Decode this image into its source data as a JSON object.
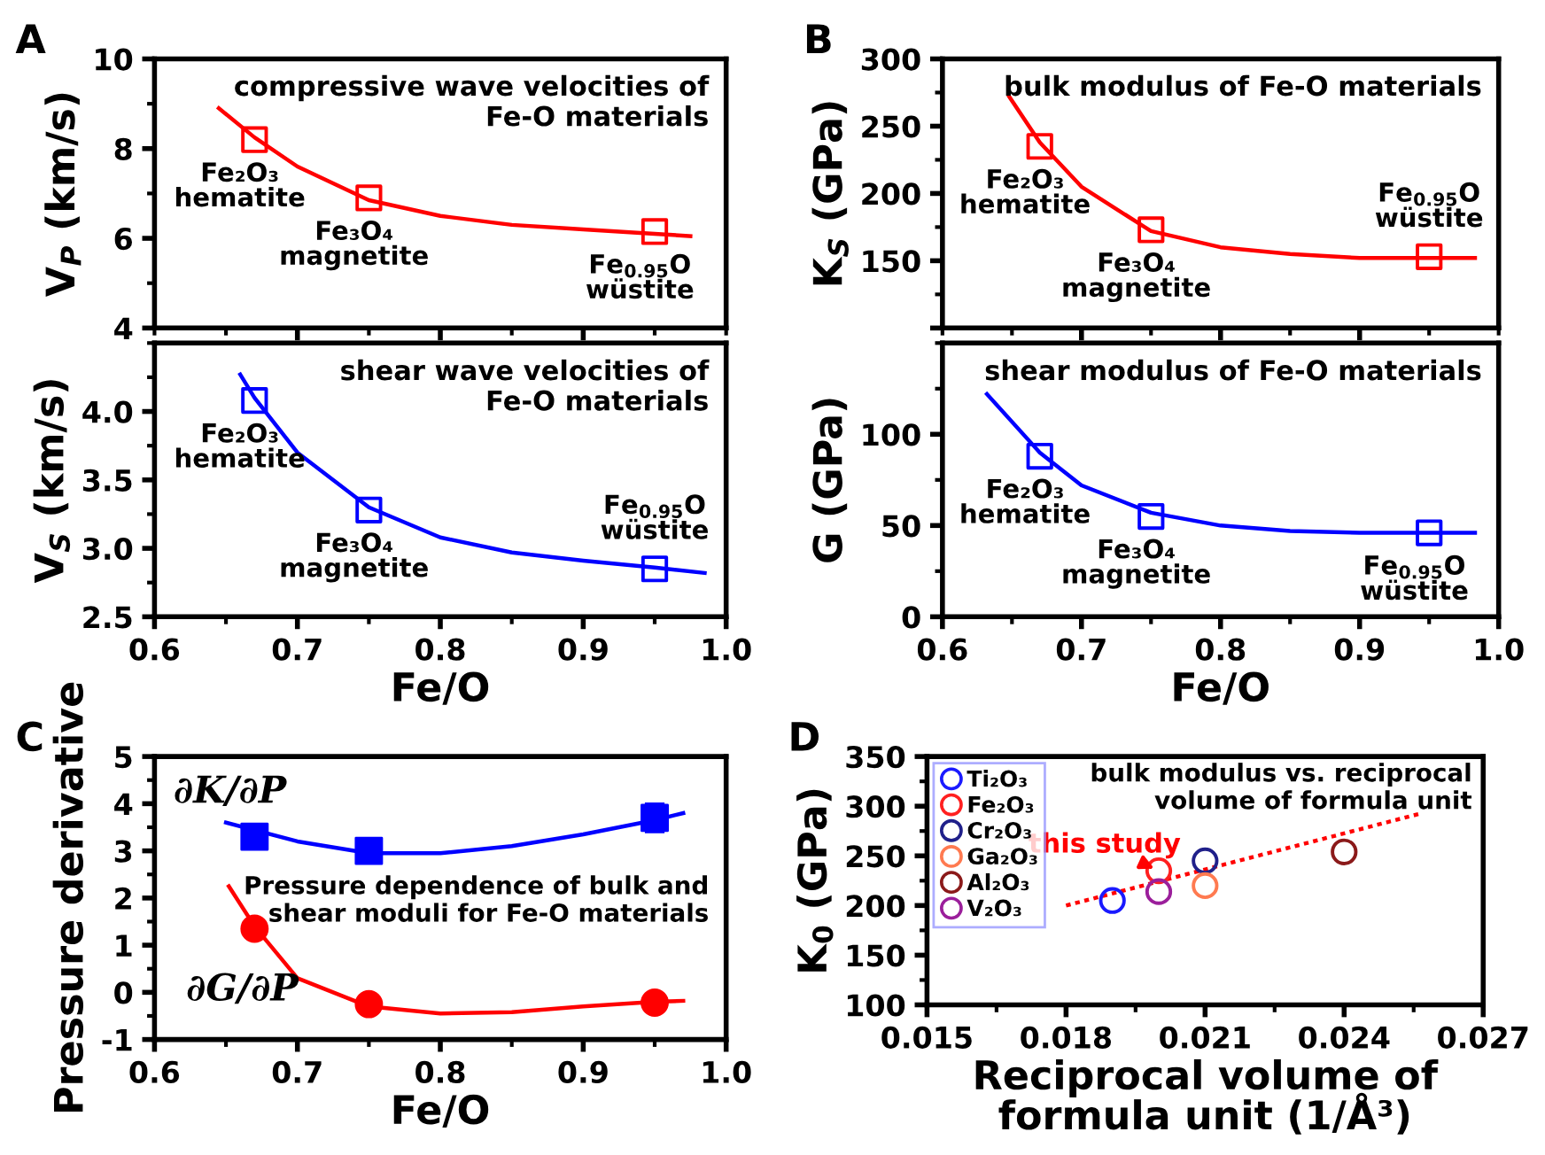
{
  "chart_data": [
    {
      "type": "scatter",
      "title": "A",
      "ylabel": "V$_{P}$ (km/s)",
      "xlim": [
        0.6,
        1.0
      ],
      "xticks": [
        {
          "value": 0.7,
          "label": null
        },
        {
          "value": 0.8,
          "label": null
        },
        {
          "value": 0.9,
          "label": null
        }
      ],
      "ylim": [
        4,
        10
      ],
      "yticks": [
        4,
        6,
        8,
        10
      ],
      "tick_labels": "y",
      "grid": false,
      "series": [
        {
          "type": "scatter",
          "marker": "square",
          "color": "#ff0000",
          "x": [
            0.67,
            0.75,
            0.95
          ],
          "values": [
            8.2,
            6.9,
            6.15
          ]
        },
        {
          "type": "line",
          "color": "#ff0000",
          "x": [
            0.645,
            0.67,
            0.7,
            0.75,
            0.8,
            0.85,
            0.9,
            0.95,
            0.975
          ],
          "values": [
            8.9,
            8.25,
            7.6,
            6.85,
            6.5,
            6.3,
            6.2,
            6.1,
            6.05
          ]
        }
      ],
      "annotations": [
        "compressive wave velocities of\nFe-O materials",
        {
          "text": "Fe₂O₃\nhematite",
          "x": 0.67,
          "y": 8.2
        },
        {
          "text": "Fe₃O₄\nmagnetite",
          "x": 0.75,
          "y": 6.9
        },
        {
          "text": "Fe$_{0.95}$O\nwüstite",
          "x": 0.95,
          "y": 6.15
        }
      ]
    },
    {
      "type": "scatter",
      "xlabel": "Fe/O",
      "ylabel": "V$_{S}$ (km/s)",
      "xlim": [
        0.6,
        1.0
      ],
      "xticks": [
        0.6,
        0.7,
        0.8,
        0.9,
        {
          "value": 1.0,
          "label": "1.0"
        }
      ],
      "ylim": [
        2.5,
        4.5
      ],
      "yticks": [
        2.5,
        {
          "value": 3.0,
          "label": "3.0"
        },
        3.5,
        {
          "value": 4.0,
          "label": "4.0"
        }
      ],
      "grid": false,
      "series": [
        {
          "type": "scatter",
          "marker": "square",
          "color": "#0000ff",
          "x": [
            0.67,
            0.75,
            0.95
          ],
          "values": [
            4.08,
            3.28,
            2.85
          ]
        },
        {
          "type": "line",
          "color": "#0000ff",
          "x": [
            0.66,
            0.67,
            0.7,
            0.75,
            0.8,
            0.85,
            0.9,
            0.95,
            0.985
          ],
          "values": [
            4.27,
            4.1,
            3.7,
            3.3,
            3.08,
            2.97,
            2.91,
            2.86,
            2.82
          ]
        }
      ],
      "annotations": [
        "shear wave velocities of\nFe-O materials",
        {
          "text": "Fe₂O₃\nhematite",
          "x": 0.67,
          "y": 4.08
        },
        {
          "text": "Fe₃O₄\nmagnetite",
          "x": 0.75,
          "y": 3.28
        },
        {
          "text": "Fe$_{0.95}$O\nwüstite",
          "x": 0.95,
          "y": 2.85
        }
      ]
    },
    {
      "type": "scatter",
      "title": "B",
      "ylabel": "K$_{S}$ (GPa)",
      "xlim": [
        0.6,
        1.0
      ],
      "xticks": [
        {
          "value": 0.7,
          "label": null
        },
        {
          "value": 0.8,
          "label": null
        },
        {
          "value": 0.9,
          "label": null
        }
      ],
      "ylim": [
        100,
        300
      ],
      "yticks": [
        {
          "value": 100,
          "label": null
        },
        150,
        200,
        250,
        300
      ],
      "tick_labels": "y",
      "grid": false,
      "series": [
        {
          "type": "scatter",
          "marker": "square",
          "color": "#ff0000",
          "x": [
            0.67,
            0.75,
            0.95
          ],
          "values": [
            235,
            173,
            153
          ]
        },
        {
          "type": "line",
          "color": "#ff0000",
          "x": [
            0.648,
            0.67,
            0.7,
            0.75,
            0.8,
            0.85,
            0.9,
            0.95,
            0.983
          ],
          "values": [
            272,
            238,
            205,
            172,
            160,
            155,
            152,
            152,
            152
          ]
        }
      ],
      "annotations": [
        "bulk modulus of Fe-O materials",
        {
          "text": "Fe₂O₃\nhematite",
          "x": 0.67,
          "y": 235
        },
        {
          "text": "Fe₃O₄\nmagnetite",
          "x": 0.75,
          "y": 173
        },
        {
          "text": "Fe$_{0.95}$O\nwüstite",
          "x": 0.95,
          "y": 153
        }
      ]
    },
    {
      "type": "scatter",
      "xlabel": "Fe/O",
      "ylabel": "G (GPa)",
      "xlim": [
        0.6,
        1.0
      ],
      "xticks": [
        0.6,
        0.7,
        0.8,
        0.9,
        {
          "value": 1.0,
          "label": "1.0"
        }
      ],
      "ylim": [
        0,
        150
      ],
      "yticks": [
        0,
        50,
        100
      ],
      "grid": false,
      "series": [
        {
          "type": "scatter",
          "marker": "square",
          "color": "#0000ff",
          "x": [
            0.67,
            0.75,
            0.95
          ],
          "values": [
            88,
            55,
            46
          ]
        },
        {
          "type": "line",
          "color": "#0000ff",
          "x": [
            0.632,
            0.67,
            0.7,
            0.75,
            0.8,
            0.85,
            0.9,
            0.95,
            0.983
          ],
          "values": [
            122,
            90,
            72,
            57,
            50,
            47,
            46,
            46,
            46
          ]
        }
      ],
      "annotations": [
        "shear modulus of Fe-O materials",
        {
          "text": "Fe₂O₃\nhematite",
          "x": 0.67,
          "y": 88
        },
        {
          "text": "Fe₃O₄\nmagnetite",
          "x": 0.75,
          "y": 55
        },
        {
          "text": "Fe$_{0.95}$O\nwüstite",
          "x": 0.95,
          "y": 46
        }
      ]
    },
    {
      "type": "scatter",
      "title": "C",
      "xlabel": "Fe/O",
      "ylabel": "Pressure derivative",
      "xlim": [
        0.6,
        1.0
      ],
      "xticks": [
        0.6,
        0.7,
        0.8,
        0.9,
        {
          "value": 1.0,
          "label": "1.0"
        }
      ],
      "ylim": [
        -1,
        5
      ],
      "yticks": [
        -1,
        0,
        1,
        2,
        3,
        4,
        5
      ],
      "grid": false,
      "series": [
        {
          "type": "scatter",
          "name": "∂K/∂P",
          "marker": "square",
          "color": "#0000ff",
          "x": [
            0.67,
            0.75,
            0.95
          ],
          "values": [
            3.3,
            3.0,
            3.7
          ],
          "errors": [
            0.25,
            0.1,
            0.3
          ]
        },
        {
          "type": "line",
          "color": "#0000ff",
          "x": [
            0.65,
            0.7,
            0.75,
            0.8,
            0.85,
            0.9,
            0.95,
            0.97
          ],
          "values": [
            3.6,
            3.2,
            2.95,
            2.95,
            3.1,
            3.35,
            3.65,
            3.8
          ]
        },
        {
          "type": "scatter",
          "name": "∂G/∂P",
          "marker": "circle",
          "color": "#ff0000",
          "x": [
            0.67,
            0.75,
            0.95
          ],
          "values": [
            1.35,
            -0.25,
            -0.22
          ]
        },
        {
          "type": "line",
          "color": "#ff0000",
          "x": [
            0.652,
            0.67,
            0.7,
            0.75,
            0.8,
            0.85,
            0.9,
            0.95,
            0.97
          ],
          "values": [
            2.25,
            1.4,
            0.3,
            -0.3,
            -0.45,
            -0.42,
            -0.3,
            -0.2,
            -0.18
          ]
        }
      ],
      "annotations": [
        "Pressure dependence of bulk and\nshear moduli for Fe-O materials"
      ]
    },
    {
      "type": "scatter",
      "title": "D",
      "xlabel": "Reciprocal volume of\nformula unit (1/Å³)",
      "ylabel": "K$_{0}$ (GPa)",
      "xlim": [
        0.015,
        0.027
      ],
      "xticks": [
        0.015,
        0.018,
        0.021,
        0.024,
        0.027
      ],
      "ylim": [
        100,
        350
      ],
      "yticks": [
        100,
        150,
        200,
        250,
        300,
        350
      ],
      "grid": false,
      "legend": "top left",
      "series": [
        {
          "name": "Ti₂O₃",
          "marker": "circle",
          "color": "#1a1aff",
          "x": [
            0.019
          ],
          "values": [
            205
          ]
        },
        {
          "name": "Fe₂O₃",
          "marker": "circle",
          "color": "#ff2020",
          "x": [
            0.02
          ],
          "values": [
            235
          ]
        },
        {
          "name": "Cr₂O₃",
          "marker": "circle",
          "color": "#20208a",
          "x": [
            0.021
          ],
          "values": [
            245
          ]
        },
        {
          "name": "Ga₂O₃",
          "marker": "circle",
          "color": "#ff7a50",
          "x": [
            0.021
          ],
          "values": [
            220
          ]
        },
        {
          "name": "Al₂O₃",
          "marker": "circle",
          "color": "#8b1a1a",
          "x": [
            0.024
          ],
          "values": [
            254
          ]
        },
        {
          "name": "V₂O₃",
          "marker": "circle",
          "color": "#9b1f9b",
          "x": [
            0.02
          ],
          "values": [
            214
          ]
        },
        {
          "type": "line",
          "line_style": "dotted",
          "color": "#ff0000",
          "x": [
            0.018,
            0.0256
          ],
          "values": [
            200,
            292
          ]
        }
      ],
      "annotations": [
        "bulk modulus vs. reciprocal\nvolume of formula unit",
        {
          "text": "this study",
          "x": 0.02,
          "y": 235
        }
      ]
    }
  ]
}
